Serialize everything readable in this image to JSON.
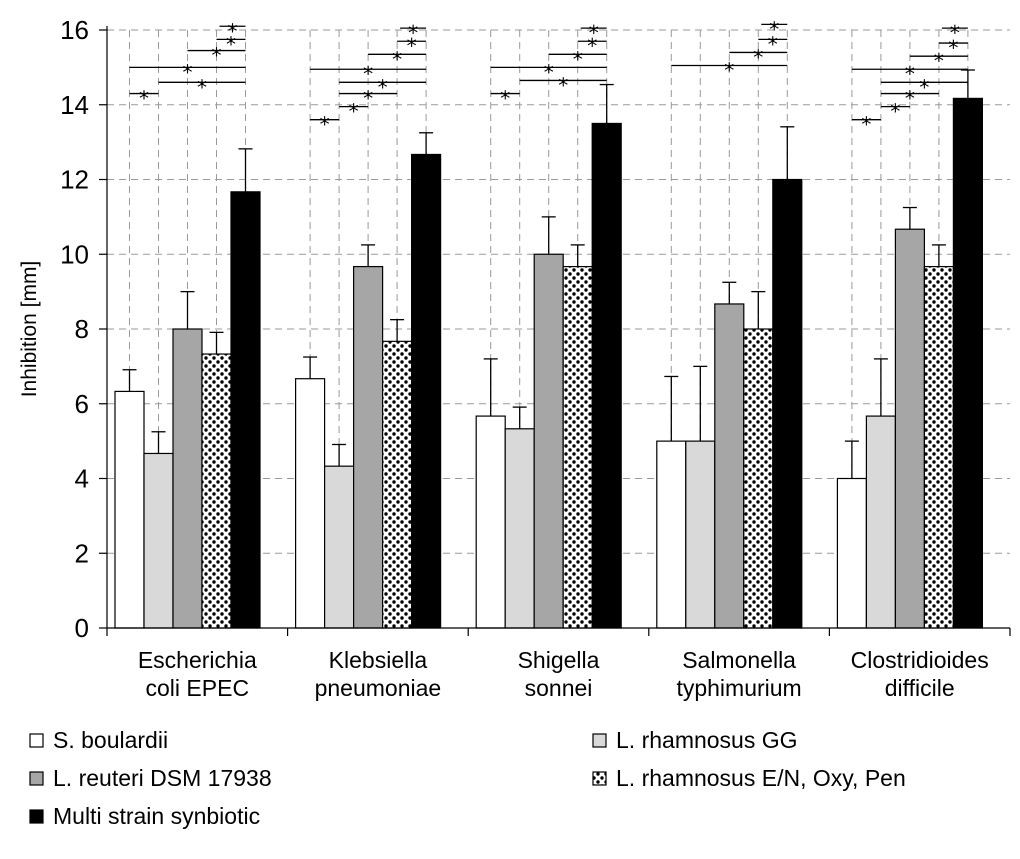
{
  "chart_data": {
    "type": "bar",
    "title": "",
    "xlabel": "",
    "ylabel": "Inhibition [mm]",
    "ylim": [
      0,
      16
    ],
    "yticks": [
      0,
      2,
      4,
      6,
      8,
      10,
      12,
      14,
      16
    ],
    "grid": "dashed",
    "legend_position": "bottom",
    "categories": [
      [
        "Escherichia",
        "coli EPEC"
      ],
      [
        "Klebsiella",
        "pneumoniae"
      ],
      [
        "Shigella",
        "sonnei"
      ],
      [
        "Salmonella",
        "typhimurium"
      ],
      [
        "Clostridioides",
        "difficile"
      ]
    ],
    "series": [
      {
        "name": "S. boulardii",
        "fill": "#ffffff",
        "pattern": "none",
        "values": [
          6.33,
          6.67,
          5.67,
          5.0,
          4.0
        ],
        "errors": [
          0.58,
          0.58,
          1.53,
          1.73,
          1.0
        ]
      },
      {
        "name": "L. rhamnosus GG",
        "fill": "#d9d9d9",
        "pattern": "none",
        "values": [
          4.67,
          4.33,
          5.33,
          5.0,
          5.67
        ],
        "errors": [
          0.58,
          0.58,
          0.58,
          2.0,
          1.53
        ]
      },
      {
        "name": "L. reuteri DSM 17938",
        "fill": "#a6a6a6",
        "pattern": "none",
        "values": [
          8.0,
          9.67,
          10.0,
          8.67,
          10.67
        ],
        "errors": [
          1.0,
          0.58,
          1.0,
          0.58,
          0.58
        ]
      },
      {
        "name": "L. rhamnosus E/N, Oxy, Pen",
        "fill": "#ffffff",
        "pattern": "dots",
        "values": [
          7.33,
          7.67,
          9.67,
          8.0,
          9.67
        ],
        "errors": [
          0.58,
          0.58,
          0.58,
          1.0,
          0.58
        ]
      },
      {
        "name": "Multi strain synbiotic",
        "fill": "#000000",
        "pattern": "none",
        "values": [
          11.67,
          12.67,
          13.5,
          12.0,
          14.17
        ],
        "errors": [
          1.15,
          0.58,
          1.04,
          1.41,
          0.76
        ]
      }
    ],
    "significance_marker": "*",
    "significance": [
      [
        {
          "from": 0,
          "to": 1,
          "level": 14.3
        },
        {
          "from": 0,
          "to": 4,
          "level": 15.0
        },
        {
          "from": 1,
          "to": 4,
          "level": 14.6
        },
        {
          "from": 2,
          "to": 4,
          "level": 15.45
        },
        {
          "from": 3,
          "to": 4,
          "level": 15.75
        },
        {
          "from": 4,
          "to": 4,
          "level": 16.1
        }
      ],
      [
        {
          "from": 0,
          "to": 1,
          "level": 13.6
        },
        {
          "from": 1,
          "to": 2,
          "level": 13.95
        },
        {
          "from": 1,
          "to": 3,
          "level": 14.3
        },
        {
          "from": 0,
          "to": 4,
          "level": 14.95
        },
        {
          "from": 1,
          "to": 4,
          "level": 14.6
        },
        {
          "from": 2,
          "to": 4,
          "level": 15.35
        },
        {
          "from": 3,
          "to": 4,
          "level": 15.7
        },
        {
          "from": 4,
          "to": 4,
          "level": 16.05
        }
      ],
      [
        {
          "from": 0,
          "to": 1,
          "level": 14.3
        },
        {
          "from": 0,
          "to": 4,
          "level": 15.0
        },
        {
          "from": 1,
          "to": 4,
          "level": 14.65
        },
        {
          "from": 2,
          "to": 4,
          "level": 15.35
        },
        {
          "from": 3,
          "to": 4,
          "level": 15.7
        },
        {
          "from": 4,
          "to": 4,
          "level": 16.05
        }
      ],
      [
        {
          "from": 0,
          "to": 4,
          "level": 15.05
        },
        {
          "from": 2,
          "to": 4,
          "level": 15.4
        },
        {
          "from": 3,
          "to": 4,
          "level": 15.75
        },
        {
          "from": 4,
          "to": 4,
          "level": 16.15
        }
      ],
      [
        {
          "from": 0,
          "to": 1,
          "level": 13.6
        },
        {
          "from": 1,
          "to": 2,
          "level": 13.95
        },
        {
          "from": 1,
          "to": 3,
          "level": 14.3
        },
        {
          "from": 0,
          "to": 4,
          "level": 14.95
        },
        {
          "from": 1,
          "to": 4,
          "level": 14.6
        },
        {
          "from": 2,
          "to": 4,
          "level": 15.3
        },
        {
          "from": 3,
          "to": 4,
          "level": 15.65
        },
        {
          "from": 4,
          "to": 4,
          "level": 16.05
        }
      ]
    ]
  }
}
